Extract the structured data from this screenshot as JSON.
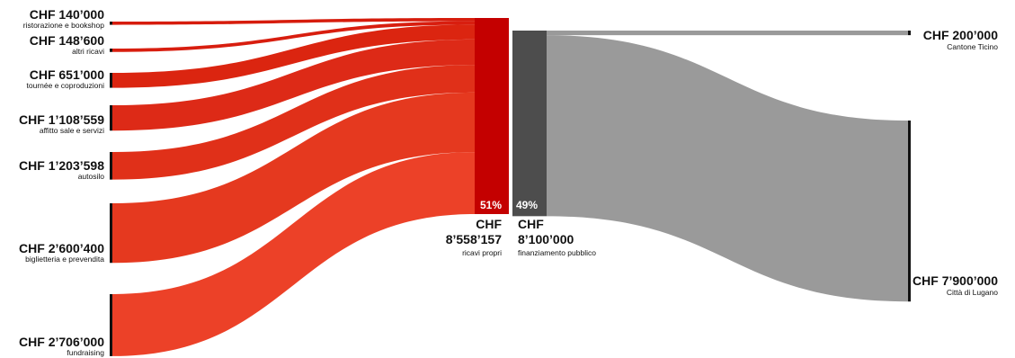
{
  "chart_data": {
    "type": "sankey",
    "currency": "CHF",
    "colors": {
      "own_node": "#c40000",
      "public_node": "#4d4d4d",
      "public_flow": "#9a9a9a",
      "source_flows": [
        "#d61c0c",
        "#d81e0f",
        "#db2510",
        "#dd2a17",
        "#e03019",
        "#e5391f",
        "#ec4128"
      ]
    },
    "left": [
      {
        "amount": "140’000",
        "label": "ristorazione e bookshop",
        "value": 140000
      },
      {
        "amount": "148’600",
        "label": "altri ricavi",
        "value": 148600
      },
      {
        "amount": "651’000",
        "label": "tournée e coproduzioni",
        "value": 651000
      },
      {
        "amount": "1’108’559",
        "label": "affitto sale e servizi",
        "value": 1108559
      },
      {
        "amount": "1’203’598",
        "label": "autosilo",
        "value": 1203598
      },
      {
        "amount": "2’600’400",
        "label": "biglietteria e prevendita",
        "value": 2600400
      },
      {
        "amount": "2’706’000",
        "label": "fundraising",
        "value": 2706000
      }
    ],
    "middle": [
      {
        "percent": "51%",
        "currency": "CHF",
        "amount": "8’558’157",
        "label": "ricavi propri",
        "value": 8558157
      },
      {
        "percent": "49%",
        "currency": "CHF",
        "amount": "8’100’000",
        "label": "finanziamento pubblico",
        "value": 8100000
      }
    ],
    "right": [
      {
        "amount": "200’000",
        "label": "Cantone Ticino",
        "value": 200000
      },
      {
        "amount": "7’900’000",
        "label": "Città di Lugano",
        "value": 7900000
      }
    ]
  }
}
